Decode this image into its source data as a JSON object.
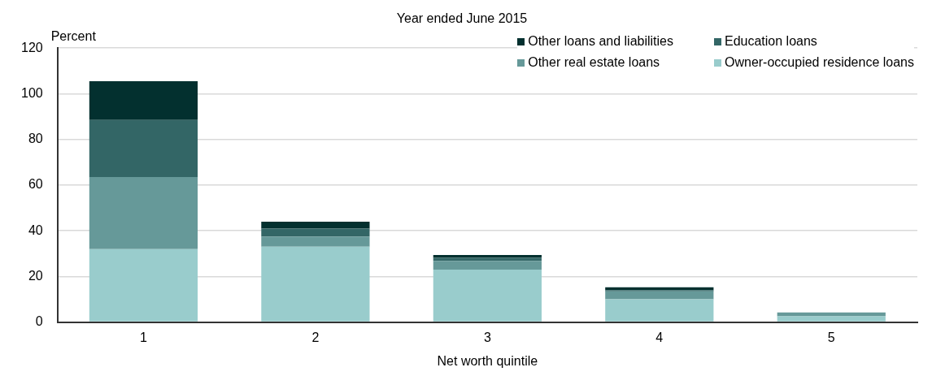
{
  "chart_data": {
    "type": "bar",
    "title": "Year ended June 2015",
    "xlabel": "Net worth quintile",
    "ylabel": "Percent",
    "categories": [
      "1",
      "2",
      "3",
      "4",
      "5"
    ],
    "stacked": true,
    "series": [
      {
        "name": "Owner-occupied residence loans",
        "color": "#99cccc",
        "values": [
          32,
          33,
          23,
          10,
          2.5
        ]
      },
      {
        "name": "Other real estate loans",
        "color": "#669999",
        "values": [
          31.5,
          4.5,
          3.8,
          3.5,
          1.7
        ]
      },
      {
        "name": "Education loans",
        "color": "#336666",
        "values": [
          25,
          3.4,
          1.3,
          0.5,
          0
        ]
      },
      {
        "name": "Other loans and liabilities",
        "color": "#03302f",
        "values": [
          17,
          3.1,
          1.3,
          1.2,
          0
        ]
      }
    ],
    "ylim": [
      0,
      120
    ],
    "yticks": [
      0,
      20,
      40,
      60,
      80,
      100,
      120
    ],
    "grid": "y",
    "legend": "top right"
  }
}
